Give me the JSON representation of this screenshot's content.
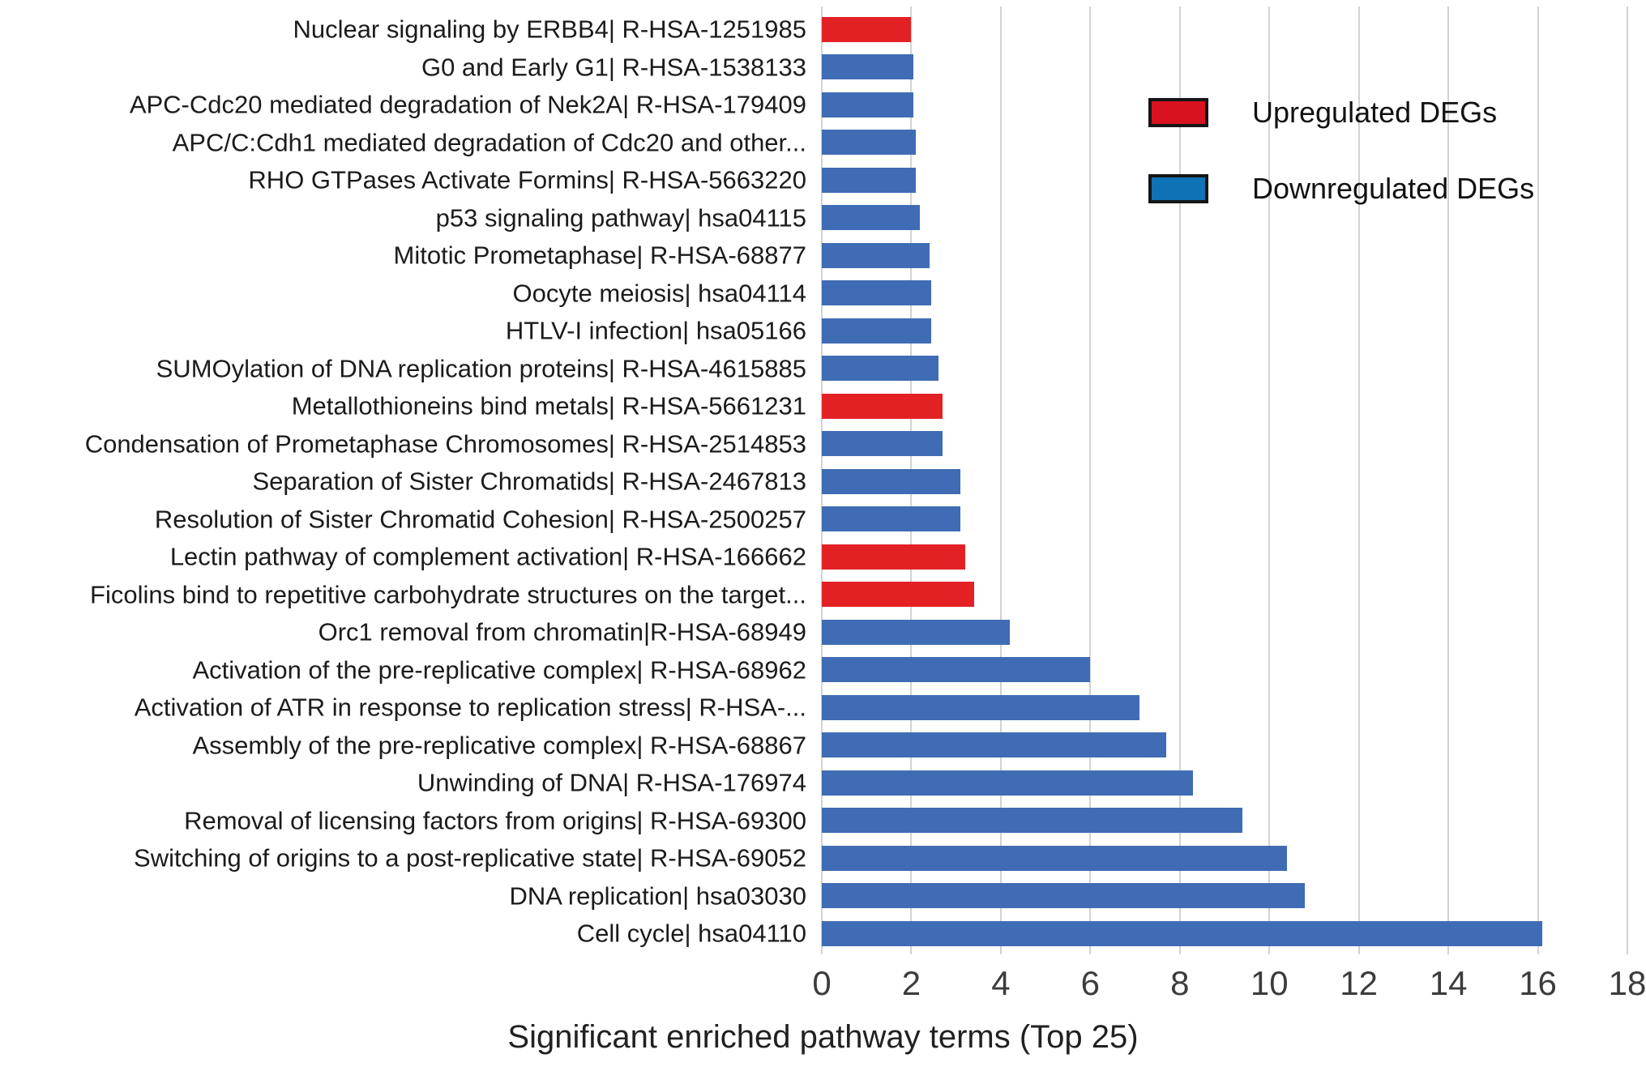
{
  "figure": {
    "kind": "horizontal grouped bar chart of pathway enrichment"
  },
  "legend": {
    "items": [
      {
        "label": "Upregulated DEGs",
        "color": "#d8131f",
        "border": "#151515"
      },
      {
        "label": "Downregulated DEGs",
        "color": "#0e72b5",
        "border": "#151515"
      }
    ]
  },
  "chart_data": {
    "type": "bar",
    "orientation": "horizontal",
    "title": "",
    "xlabel": "Significant enriched pathway terms (Top 25)",
    "ylabel": "",
    "xlim": [
      0,
      18
    ],
    "xticks": [
      0,
      2,
      4,
      6,
      8,
      10,
      12,
      14,
      16,
      18
    ],
    "grid": true,
    "legend_position": "upper-right",
    "series_colors": {
      "up": "#e32124",
      "down": "#3f6cb4"
    },
    "bars": [
      {
        "label": "Nuclear signaling by ERBB4| R-HSA-1251985",
        "value": 2.0,
        "group": "up"
      },
      {
        "label": "G0 and Early G1| R-HSA-1538133",
        "value": 2.05,
        "group": "down"
      },
      {
        "label": "APC-Cdc20 mediated degradation of Nek2A| R-HSA-179409",
        "value": 2.05,
        "group": "down"
      },
      {
        "label": "APC/C:Cdh1 mediated degradation of Cdc20 and other...",
        "value": 2.1,
        "group": "down"
      },
      {
        "label": "RHO GTPases Activate Formins| R-HSA-5663220",
        "value": 2.1,
        "group": "down"
      },
      {
        "label": "p53 signaling pathway| hsa04115",
        "value": 2.2,
        "group": "down"
      },
      {
        "label": "Mitotic Prometaphase| R-HSA-68877",
        "value": 2.4,
        "group": "down"
      },
      {
        "label": "Oocyte meiosis| hsa04114",
        "value": 2.45,
        "group": "down"
      },
      {
        "label": "HTLV-I infection| hsa05166",
        "value": 2.45,
        "group": "down"
      },
      {
        "label": "SUMOylation of DNA replication proteins| R-HSA-4615885",
        "value": 2.6,
        "group": "down"
      },
      {
        "label": "Metallothioneins bind metals| R-HSA-5661231",
        "value": 2.7,
        "group": "up"
      },
      {
        "label": "Condensation of Prometaphase Chromosomes| R-HSA-2514853",
        "value": 2.7,
        "group": "down"
      },
      {
        "label": "Separation of Sister Chromatids| R-HSA-2467813",
        "value": 3.1,
        "group": "down"
      },
      {
        "label": "Resolution of Sister Chromatid Cohesion| R-HSA-2500257",
        "value": 3.1,
        "group": "down"
      },
      {
        "label": "Lectin pathway of complement activation| R-HSA-166662",
        "value": 3.2,
        "group": "up"
      },
      {
        "label": "Ficolins bind to repetitive carbohydrate structures on the target...",
        "value": 3.4,
        "group": "up"
      },
      {
        "label": "Orc1 removal from chromatin|R-HSA-68949",
        "value": 4.2,
        "group": "down"
      },
      {
        "label": "Activation of the pre-replicative complex| R-HSA-68962",
        "value": 6.0,
        "group": "down"
      },
      {
        "label": "Activation of ATR in response to replication stress| R-HSA-...",
        "value": 7.1,
        "group": "down"
      },
      {
        "label": "Assembly of the pre-replicative complex| R-HSA-68867",
        "value": 7.7,
        "group": "down"
      },
      {
        "label": "Unwinding of DNA| R-HSA-176974",
        "value": 8.3,
        "group": "down"
      },
      {
        "label": "Removal of licensing factors from origins| R-HSA-69300",
        "value": 9.4,
        "group": "down"
      },
      {
        "label": "Switching of origins to a post-replicative state| R-HSA-69052",
        "value": 10.4,
        "group": "down"
      },
      {
        "label": "DNA replication| hsa03030",
        "value": 10.8,
        "group": "down"
      },
      {
        "label": "Cell cycle| hsa04110",
        "value": 16.1,
        "group": "down"
      }
    ]
  }
}
